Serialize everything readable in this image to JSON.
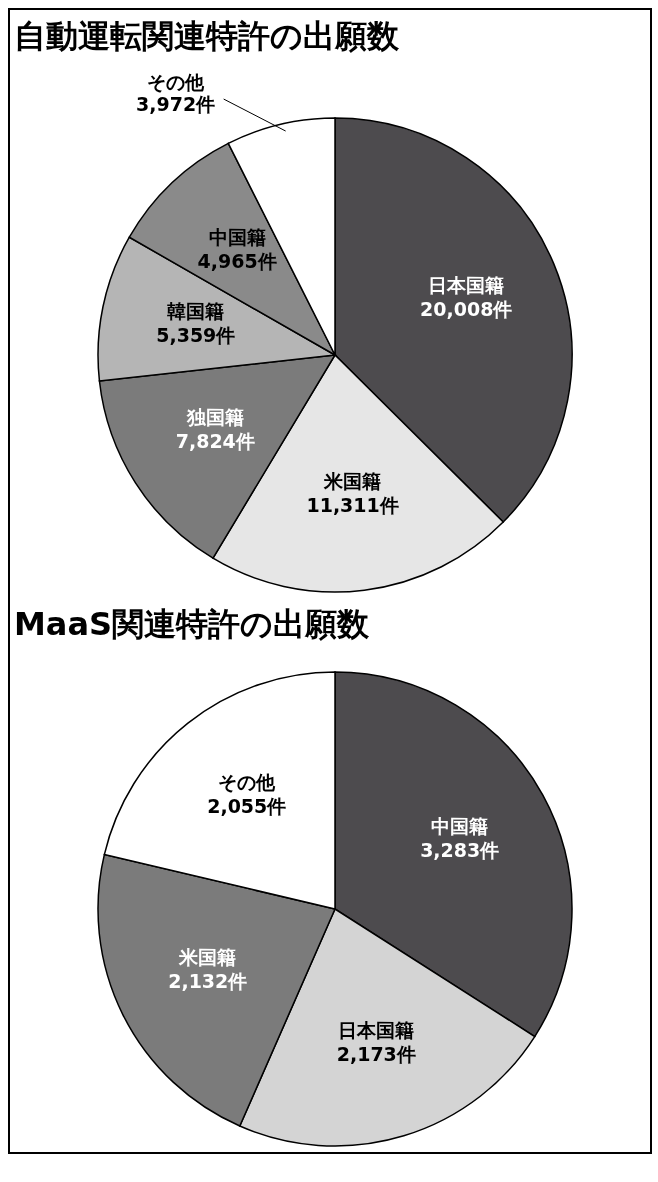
{
  "chart_data": [
    {
      "type": "pie",
      "title": "自動運転関連特許の出願数",
      "categories": [
        "日本国籍",
        "米国籍",
        "独国籍",
        "韓国籍",
        "中国籍",
        "その他"
      ],
      "values": [
        20008,
        11311,
        7824,
        5359,
        4965,
        3972
      ],
      "colors": [
        "#4d4b4e",
        "#e6e6e6",
        "#7b7b7b",
        "#b5b5b5",
        "#8a8a8a",
        "#ffffff"
      ],
      "value_labels": [
        "20,008件",
        "11,311件",
        "7,824件",
        "5,359件",
        "4,965件",
        "3,972件"
      ]
    },
    {
      "type": "pie",
      "title": "MaaS関連特許の出願数",
      "categories": [
        "中国籍",
        "日本国籍",
        "米国籍",
        "その他"
      ],
      "values": [
        3283,
        2173,
        2132,
        2055
      ],
      "colors": [
        "#4d4b4e",
        "#d4d4d4",
        "#7b7b7b",
        "#ffffff"
      ],
      "value_labels": [
        "3,283件",
        "2,173件",
        "2,132件",
        "2,055件"
      ]
    }
  ]
}
